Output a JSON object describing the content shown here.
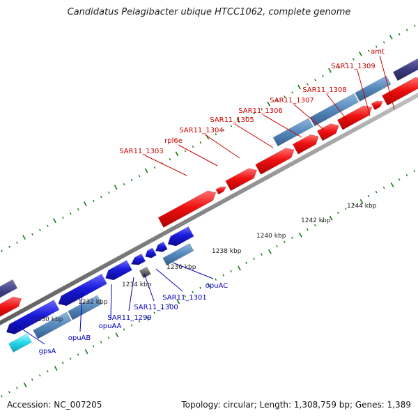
{
  "title": "Candidatus Pelagibacter ubique HTCC1062, complete genome",
  "footer": {
    "accession": "Accession: NC_007205",
    "summary": "Topology: circular; Length: 1,308,759 bp; Genes: 1,389"
  },
  "colors": {
    "forward_cds": "#ee1111",
    "reverse_cds": "#1a1adc",
    "rna": "#5588bb",
    "other_gene": "#3b3b80",
    "cyan_gene": "#22d8e8",
    "gray_gene": "#666666",
    "backbone": "#888888",
    "tick": "#117711",
    "forward_label": "#cc0000",
    "reverse_label": "#0000bb"
  },
  "scale_labels": [
    "1230 kbp",
    "1232 kbp",
    "1234 kbp",
    "1236 kbp",
    "1238 kbp",
    "1240 kbp",
    "1242 kbp",
    "1244 kbp"
  ],
  "forward_labels": [
    "SAR11_1303",
    "rpl6e",
    "SAR11_1304",
    "SAR11_1305",
    "SAR11_1306",
    "SAR11_1307",
    "SAR11_1308",
    "SAR11_1309",
    "amt"
  ],
  "reverse_labels": [
    "gpsA",
    "opuAB",
    "opuAA",
    "SAR11_1299",
    "SAR11_1300",
    "SAR11_1301",
    "opuAC"
  ]
}
